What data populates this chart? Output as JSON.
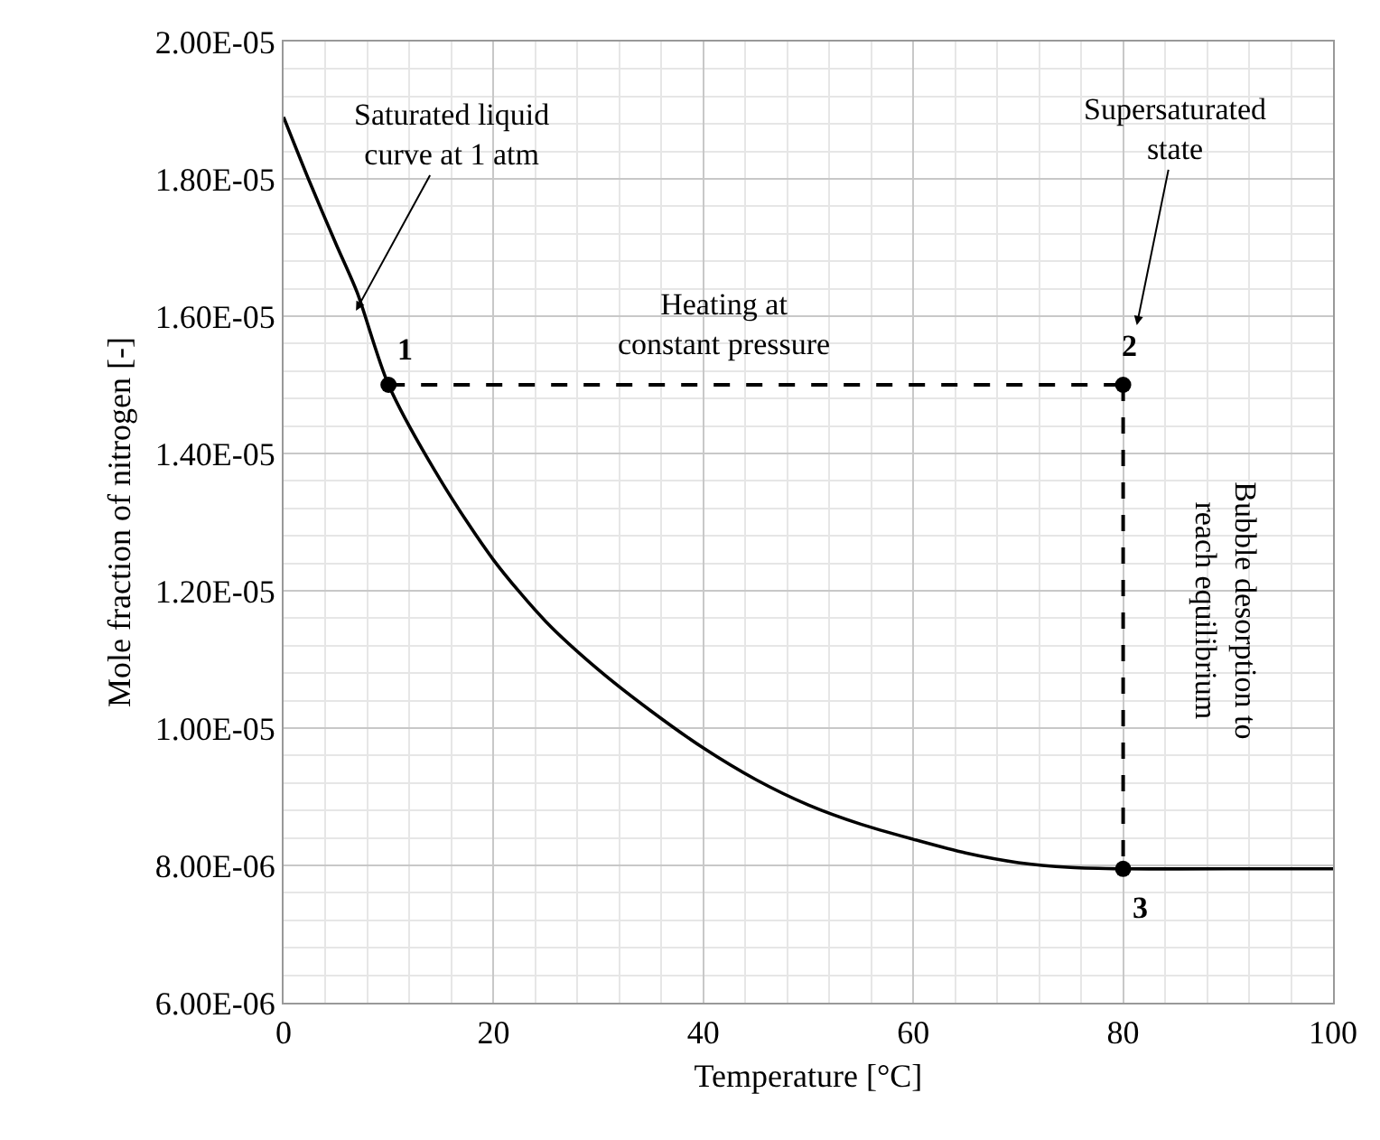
{
  "chart_data": {
    "type": "line",
    "xlabel": "Temperature [°C]",
    "ylabel": "Mole fraction of nitrogen [-]",
    "xlim": [
      0,
      100
    ],
    "xticks": [
      0,
      20,
      40,
      60,
      80,
      100
    ],
    "ylim": [
      6e-06,
      2e-05
    ],
    "yticks": [
      {
        "value": 6e-06,
        "label": "6.00E-06"
      },
      {
        "value": 8e-06,
        "label": "8.00E-06"
      },
      {
        "value": 1e-05,
        "label": "1.00E-05"
      },
      {
        "value": 1.2e-05,
        "label": "1.20E-05"
      },
      {
        "value": 1.4e-05,
        "label": "1.40E-05"
      },
      {
        "value": 1.6e-05,
        "label": "1.60E-05"
      },
      {
        "value": 1.8e-05,
        "label": "1.80E-05"
      },
      {
        "value": 2e-05,
        "label": "2.00E-05"
      }
    ],
    "grid": true,
    "series": [
      {
        "color": "#000000",
        "line_style": "solid",
        "marker": "none",
        "x": [
          0,
          2.5,
          5,
          7,
          10,
          15,
          20,
          25,
          30,
          35,
          40,
          45,
          50,
          55,
          60,
          65,
          70,
          75,
          80,
          90,
          100
        ],
        "values": [
          1.89e-05,
          1.795e-05,
          1.705e-05,
          1.635e-05,
          1.5e-05,
          1.36e-05,
          1.245e-05,
          1.155e-05,
          1.085e-05,
          1.025e-05,
          9.71e-06,
          9.25e-06,
          8.88e-06,
          8.6e-06,
          8.38e-06,
          8.18e-06,
          8.04e-06,
          7.97e-06,
          7.95e-06,
          7.95e-06,
          7.95e-06
        ]
      },
      {
        "color": "#000000",
        "line_style": "dashed",
        "marker": "none",
        "x": [
          10,
          80
        ],
        "values": [
          1.5e-05,
          1.5e-05
        ]
      },
      {
        "color": "#000000",
        "line_style": "dashed",
        "marker": "none",
        "x": [
          80,
          80
        ],
        "values": [
          1.5e-05,
          7.95e-06
        ]
      },
      {
        "type": "scatter",
        "color": "#000000",
        "marker": "circle",
        "x": [
          10,
          80,
          80
        ],
        "values": [
          1.5e-05,
          1.5e-05,
          7.95e-06
        ]
      }
    ],
    "annotations": [
      {
        "text": "Saturated liquid\ncurve at 1 atm",
        "x": 6.9,
        "y": 1.608e-05
      },
      "Supersaturated\nstate",
      {
        "text": "Heating at\nconstant pressure",
        "x": 42,
        "y": 1.5e-05
      },
      {
        "text": "Bubble desorption to\nreach equilibrium",
        "x": 80,
        "y": 1.17e-05
      },
      {
        "text": "1",
        "x": 10,
        "y": 1.5e-05
      },
      {
        "text": "2",
        "x": 80,
        "y": 1.5e-05
      },
      {
        "text": "3",
        "x": 80,
        "y": 7.95e-06
      }
    ]
  }
}
